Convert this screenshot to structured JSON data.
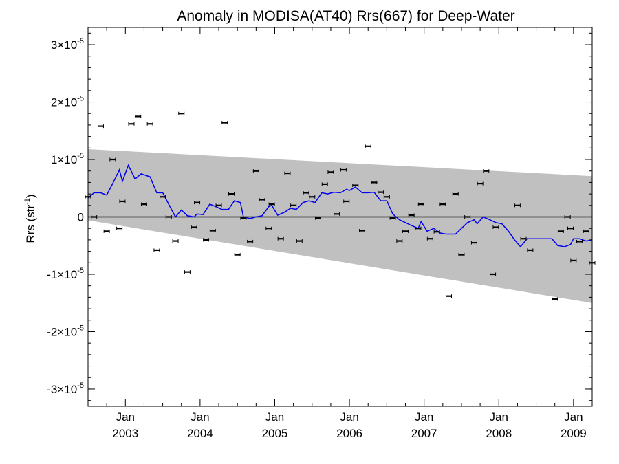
{
  "chart_data": {
    "type": "scatter",
    "title": "Anomaly in MODISA(AT40) Rrs(667) for Deep-Water",
    "ylabel": "Rrs (str",
    "ylabel_sup": "-1",
    "ylabel_tail": ")",
    "xlabel": "",
    "xlim": [
      2002.5,
      2009.25
    ],
    "ylim": [
      -3.3e-05,
      3.3e-05
    ],
    "grid": false,
    "y_ticks": [
      {
        "value": 3e-05,
        "base": "3×10",
        "exp": "-5"
      },
      {
        "value": 2e-05,
        "base": "2×10",
        "exp": "-5"
      },
      {
        "value": 1e-05,
        "base": "1×10",
        "exp": "-5"
      },
      {
        "value": 0,
        "base": "0",
        "exp": ""
      },
      {
        "value": -1e-05,
        "base": "-1×10",
        "exp": "-5"
      },
      {
        "value": -2e-05,
        "base": "-2×10",
        "exp": "-5"
      },
      {
        "value": -3e-05,
        "base": "-3×10",
        "exp": "-5"
      }
    ],
    "x_ticks": [
      {
        "value": 2003.0,
        "month": "Jan",
        "year": "2003"
      },
      {
        "value": 2004.0,
        "month": "Jan",
        "year": "2004"
      },
      {
        "value": 2005.0,
        "month": "Jan",
        "year": "2005"
      },
      {
        "value": 2006.0,
        "month": "Jan",
        "year": "2006"
      },
      {
        "value": 2007.0,
        "month": "Jan",
        "year": "2007"
      },
      {
        "value": 2008.0,
        "month": "Jan",
        "year": "2008"
      },
      {
        "value": 2009.0,
        "month": "Jan",
        "year": "2009"
      }
    ],
    "band": {
      "color": "#c0c0c0",
      "upper": [
        [
          2002.5,
          1.18e-05
        ],
        [
          2009.25,
          7.1e-06
        ]
      ],
      "lower": [
        [
          2002.5,
          -6e-07
        ],
        [
          2009.25,
          -1.5e-05
        ]
      ]
    },
    "zero_line": 0,
    "points": [
      {
        "x": 2002.5,
        "y": 3.5e-06
      },
      {
        "x": 2002.58,
        "y": 0.0
      },
      {
        "x": 2002.67,
        "y": 1.58e-05
      },
      {
        "x": 2002.75,
        "y": -2.5e-06
      },
      {
        "x": 2002.83,
        "y": 1e-05
      },
      {
        "x": 2002.92,
        "y": -2e-06
      },
      {
        "x": 2002.96,
        "y": 2.7e-06
      },
      {
        "x": 2003.08,
        "y": 1.62e-05
      },
      {
        "x": 2003.17,
        "y": 1.75e-05
      },
      {
        "x": 2003.25,
        "y": 2.2e-06
      },
      {
        "x": 2003.33,
        "y": 1.62e-05
      },
      {
        "x": 2003.42,
        "y": -5.8e-06
      },
      {
        "x": 2003.5,
        "y": 3.5e-06
      },
      {
        "x": 2003.58,
        "y": 0.0
      },
      {
        "x": 2003.67,
        "y": -4.2e-06
      },
      {
        "x": 2003.75,
        "y": 1.8e-05
      },
      {
        "x": 2003.83,
        "y": -9.6e-06
      },
      {
        "x": 2003.92,
        "y": -1.8e-06
      },
      {
        "x": 2003.96,
        "y": 2.5e-06
      },
      {
        "x": 2004.08,
        "y": -4e-06
      },
      {
        "x": 2004.17,
        "y": -2.4e-06
      },
      {
        "x": 2004.25,
        "y": 2e-06
      },
      {
        "x": 2004.33,
        "y": 1.64e-05
      },
      {
        "x": 2004.42,
        "y": 4e-06
      },
      {
        "x": 2004.5,
        "y": -6.6e-06
      },
      {
        "x": 2004.58,
        "y": -2e-07
      },
      {
        "x": 2004.67,
        "y": -4.3e-06
      },
      {
        "x": 2004.75,
        "y": 8e-06
      },
      {
        "x": 2004.83,
        "y": 3e-06
      },
      {
        "x": 2004.92,
        "y": -2e-06
      },
      {
        "x": 2004.96,
        "y": 2.2e-06
      },
      {
        "x": 2005.08,
        "y": -3.8e-06
      },
      {
        "x": 2005.17,
        "y": 7.6e-06
      },
      {
        "x": 2005.25,
        "y": 2e-06
      },
      {
        "x": 2005.33,
        "y": -4.2e-06
      },
      {
        "x": 2005.42,
        "y": 4.2e-06
      },
      {
        "x": 2005.5,
        "y": 3.5e-06
      },
      {
        "x": 2005.58,
        "y": -2e-07
      },
      {
        "x": 2005.67,
        "y": 5.7e-06
      },
      {
        "x": 2005.75,
        "y": 7.8e-06
      },
      {
        "x": 2005.83,
        "y": 5e-07
      },
      {
        "x": 2005.92,
        "y": 8.2e-06
      },
      {
        "x": 2005.96,
        "y": 2.7e-06
      },
      {
        "x": 2006.08,
        "y": 5.5e-06
      },
      {
        "x": 2006.17,
        "y": -2.4e-06
      },
      {
        "x": 2006.25,
        "y": 1.23e-05
      },
      {
        "x": 2006.33,
        "y": 6e-06
      },
      {
        "x": 2006.42,
        "y": 4.3e-06
      },
      {
        "x": 2006.5,
        "y": 3.5e-06
      },
      {
        "x": 2006.58,
        "y": -2e-07
      },
      {
        "x": 2006.67,
        "y": -4.2e-06
      },
      {
        "x": 2006.75,
        "y": -2.5e-06
      },
      {
        "x": 2006.83,
        "y": 3e-07
      },
      {
        "x": 2006.92,
        "y": -2e-06
      },
      {
        "x": 2006.96,
        "y": 2.2e-06
      },
      {
        "x": 2007.08,
        "y": -3.8e-06
      },
      {
        "x": 2007.17,
        "y": -2.6e-06
      },
      {
        "x": 2007.25,
        "y": 2.2e-06
      },
      {
        "x": 2007.33,
        "y": -1.38e-05
      },
      {
        "x": 2007.42,
        "y": 4e-06
      },
      {
        "x": 2007.5,
        "y": -6.6e-06
      },
      {
        "x": 2007.58,
        "y": 0.0
      },
      {
        "x": 2007.67,
        "y": -4.5e-06
      },
      {
        "x": 2007.75,
        "y": 5.8e-06
      },
      {
        "x": 2007.83,
        "y": 8e-06
      },
      {
        "x": 2007.92,
        "y": -1e-05
      },
      {
        "x": 2007.96,
        "y": -1.8e-06
      },
      {
        "x": 2008.25,
        "y": 2e-06
      },
      {
        "x": 2008.33,
        "y": -3.8e-06
      },
      {
        "x": 2008.42,
        "y": -5.8e-06
      },
      {
        "x": 2008.75,
        "y": -1.43e-05
      },
      {
        "x": 2008.83,
        "y": -2.5e-06
      },
      {
        "x": 2008.92,
        "y": 0.0
      },
      {
        "x": 2008.96,
        "y": -2e-06
      },
      {
        "x": 2009.0,
        "y": -7.6e-06
      },
      {
        "x": 2009.08,
        "y": -4.3e-06
      },
      {
        "x": 2009.17,
        "y": -2.5e-06
      },
      {
        "x": 2009.25,
        "y": -8e-06
      }
    ],
    "trend_line": {
      "color": "#0000ee",
      "points": [
        [
          2002.5,
          3.3e-06
        ],
        [
          2002.58,
          4.2e-06
        ],
        [
          2002.67,
          4.2e-06
        ],
        [
          2002.75,
          3.8e-06
        ],
        [
          2002.83,
          5.8e-06
        ],
        [
          2002.92,
          8.2e-06
        ],
        [
          2002.96,
          6.2e-06
        ],
        [
          2003.04,
          9e-06
        ],
        [
          2003.13,
          6.6e-06
        ],
        [
          2003.21,
          7.5e-06
        ],
        [
          2003.33,
          7e-06
        ],
        [
          2003.42,
          4.2e-06
        ],
        [
          2003.5,
          4.2e-06
        ],
        [
          2003.58,
          2.2e-06
        ],
        [
          2003.67,
          0.0
        ],
        [
          2003.75,
          1.2e-06
        ],
        [
          2003.83,
          2e-07
        ],
        [
          2003.92,
          0.0
        ],
        [
          2003.96,
          5e-07
        ],
        [
          2004.04,
          4e-07
        ],
        [
          2004.13,
          2.2e-06
        ],
        [
          2004.21,
          1.8e-06
        ],
        [
          2004.29,
          1.3e-06
        ],
        [
          2004.38,
          1.3e-06
        ],
        [
          2004.46,
          2.8e-06
        ],
        [
          2004.54,
          2.5e-06
        ],
        [
          2004.58,
          0.0
        ],
        [
          2004.67,
          -3e-07
        ],
        [
          2004.75,
          0.0
        ],
        [
          2004.83,
          2e-07
        ],
        [
          2004.92,
          1.8e-06
        ],
        [
          2004.96,
          2e-06
        ],
        [
          2005.04,
          3e-07
        ],
        [
          2005.13,
          8e-07
        ],
        [
          2005.21,
          1.5e-06
        ],
        [
          2005.29,
          1.3e-06
        ],
        [
          2005.38,
          2.5e-06
        ],
        [
          2005.46,
          2.8e-06
        ],
        [
          2005.54,
          2.5e-06
        ],
        [
          2005.63,
          4.2e-06
        ],
        [
          2005.71,
          4e-06
        ],
        [
          2005.79,
          4.3e-06
        ],
        [
          2005.88,
          4.2e-06
        ],
        [
          2005.96,
          4.8e-06
        ],
        [
          2006.0,
          4.6e-06
        ],
        [
          2006.08,
          5.2e-06
        ],
        [
          2006.17,
          4.2e-06
        ],
        [
          2006.25,
          4.2e-06
        ],
        [
          2006.33,
          4.3e-06
        ],
        [
          2006.42,
          2.8e-06
        ],
        [
          2006.5,
          2.8e-06
        ],
        [
          2006.58,
          5e-07
        ],
        [
          2006.67,
          -5e-07
        ],
        [
          2006.75,
          -1e-06
        ],
        [
          2006.83,
          -1.5e-06
        ],
        [
          2006.92,
          -2e-06
        ],
        [
          2006.96,
          -8e-07
        ],
        [
          2007.04,
          -2.5e-06
        ],
        [
          2007.13,
          -2e-06
        ],
        [
          2007.21,
          -2.8e-06
        ],
        [
          2007.29,
          -3e-06
        ],
        [
          2007.42,
          -3e-06
        ],
        [
          2007.5,
          -2e-06
        ],
        [
          2007.58,
          -1e-06
        ],
        [
          2007.67,
          -5e-07
        ],
        [
          2007.71,
          -1.2e-06
        ],
        [
          2007.79,
          0.0
        ],
        [
          2007.88,
          -5e-07
        ],
        [
          2007.96,
          -1e-06
        ],
        [
          2008.04,
          -1.2e-06
        ],
        [
          2008.13,
          -2.5e-06
        ],
        [
          2008.21,
          -4e-06
        ],
        [
          2008.29,
          -5.2e-06
        ],
        [
          2008.38,
          -3.8e-06
        ],
        [
          2008.5,
          -3.8e-06
        ],
        [
          2008.63,
          -3.8e-06
        ],
        [
          2008.71,
          -3.8e-06
        ],
        [
          2008.79,
          -5e-06
        ],
        [
          2008.88,
          -5.2e-06
        ],
        [
          2008.96,
          -4.8e-06
        ],
        [
          2009.0,
          -3.8e-06
        ],
        [
          2009.08,
          -3.8e-06
        ],
        [
          2009.17,
          -4.2e-06
        ],
        [
          2009.25,
          -4e-06
        ]
      ]
    }
  }
}
